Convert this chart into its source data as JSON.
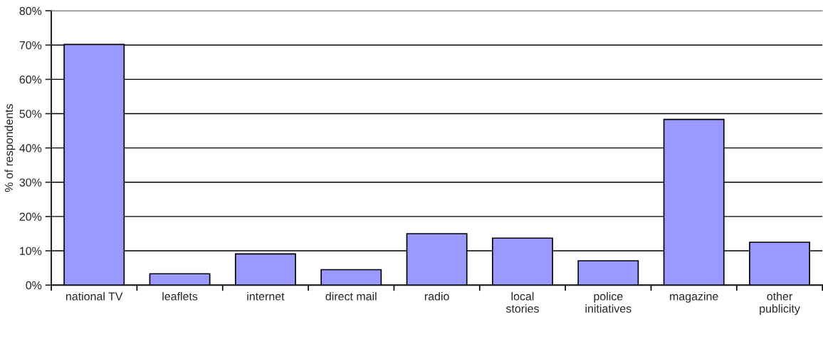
{
  "chart_data": {
    "type": "bar",
    "ylabel": "% of respondents",
    "categories": [
      "national TV",
      "leaflets",
      "internet",
      "direct mail",
      "radio",
      "local\nstories",
      "police\ninitiatives",
      "magazine",
      "other\npublicity"
    ],
    "values": [
      70.2,
      3.3,
      9.1,
      4.5,
      15.0,
      13.7,
      7.1,
      48.3,
      12.5
    ],
    "color": "#9999ff",
    "ylim": [
      0,
      80
    ],
    "yticks": [
      {
        "value": 0,
        "label": "0%"
      },
      {
        "value": 10,
        "label": "10%"
      },
      {
        "value": 20,
        "label": "20%"
      },
      {
        "value": 30,
        "label": "30%"
      },
      {
        "value": 40,
        "label": "40%"
      },
      {
        "value": 50,
        "label": "50%"
      },
      {
        "value": 60,
        "label": "60%"
      },
      {
        "value": 70,
        "label": "70%"
      },
      {
        "value": 80,
        "label": "80%"
      }
    ],
    "grid": "y"
  }
}
